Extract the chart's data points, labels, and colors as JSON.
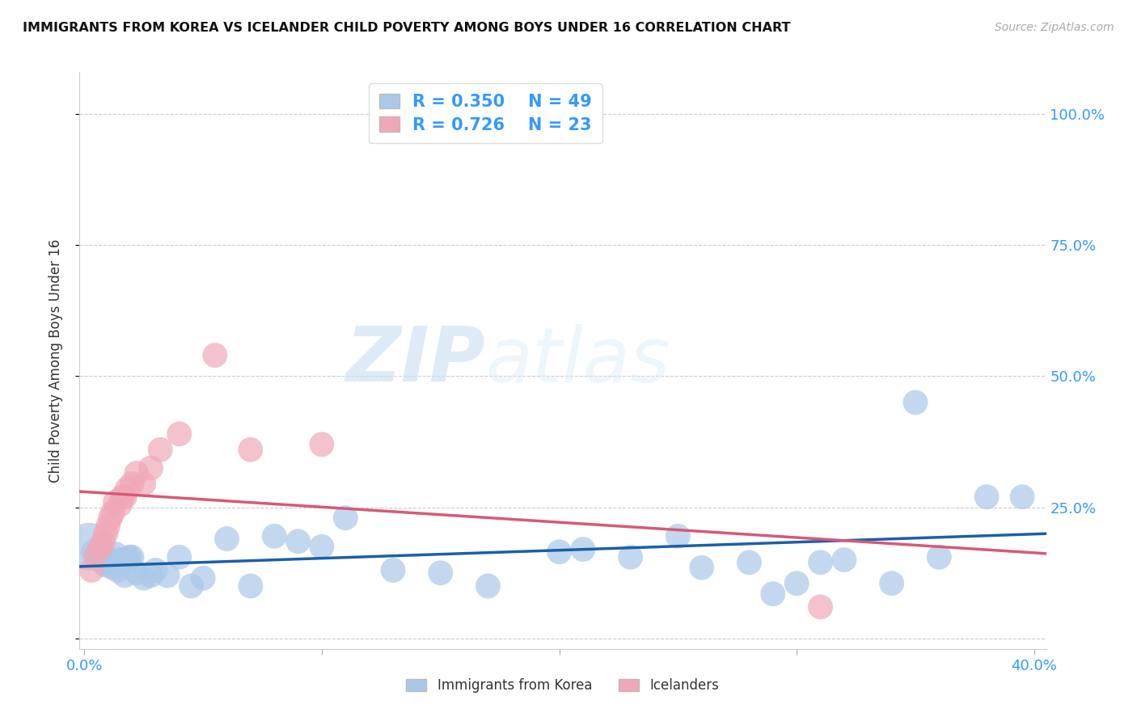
{
  "title": "IMMIGRANTS FROM KOREA VS ICELANDER CHILD POVERTY AMONG BOYS UNDER 16 CORRELATION CHART",
  "source": "Source: ZipAtlas.com",
  "ylabel": "Child Poverty Among Boys Under 16",
  "yticks": [
    0.0,
    0.25,
    0.5,
    0.75,
    1.0
  ],
  "xticks": [
    0.0,
    0.1,
    0.2,
    0.3,
    0.4
  ],
  "xlim": [
    -0.002,
    0.405
  ],
  "ylim": [
    -0.02,
    1.08
  ],
  "watermark_zip": "ZIP",
  "watermark_atlas": "atlas",
  "legend_korea_r": "0.350",
  "legend_korea_n": "49",
  "legend_iceland_r": "0.726",
  "legend_iceland_n": "23",
  "korea_color": "#aac8e8",
  "iceland_color": "#f0a8b8",
  "korea_line_color": "#1a5fa8",
  "iceland_line_color": "#d85878",
  "background_color": "#ffffff",
  "grid_color": "#cccccc",
  "korea_x": [
    0.002,
    0.004,
    0.006,
    0.007,
    0.008,
    0.009,
    0.01,
    0.011,
    0.012,
    0.013,
    0.014,
    0.015,
    0.016,
    0.017,
    0.018,
    0.019,
    0.02,
    0.022,
    0.025,
    0.028,
    0.03,
    0.035,
    0.04,
    0.045,
    0.05,
    0.06,
    0.07,
    0.08,
    0.09,
    0.1,
    0.11,
    0.13,
    0.15,
    0.17,
    0.2,
    0.21,
    0.23,
    0.25,
    0.26,
    0.28,
    0.29,
    0.3,
    0.31,
    0.32,
    0.34,
    0.35,
    0.36,
    0.38,
    0.395
  ],
  "korea_y": [
    0.175,
    0.165,
    0.16,
    0.155,
    0.145,
    0.14,
    0.15,
    0.145,
    0.135,
    0.16,
    0.13,
    0.15,
    0.145,
    0.12,
    0.15,
    0.155,
    0.155,
    0.125,
    0.115,
    0.12,
    0.13,
    0.12,
    0.155,
    0.1,
    0.115,
    0.19,
    0.1,
    0.195,
    0.185,
    0.175,
    0.23,
    0.13,
    0.125,
    0.1,
    0.165,
    0.17,
    0.155,
    0.195,
    0.135,
    0.145,
    0.085,
    0.105,
    0.145,
    0.15,
    0.105,
    0.45,
    0.155,
    0.27,
    0.27
  ],
  "korea_size": [
    200,
    60,
    55,
    55,
    60,
    55,
    60,
    55,
    55,
    60,
    55,
    55,
    55,
    55,
    55,
    55,
    55,
    55,
    55,
    55,
    55,
    55,
    55,
    55,
    55,
    55,
    55,
    55,
    55,
    55,
    55,
    55,
    55,
    55,
    55,
    55,
    55,
    55,
    55,
    55,
    55,
    55,
    55,
    55,
    55,
    55,
    55,
    55,
    55
  ],
  "iceland_x": [
    0.003,
    0.005,
    0.007,
    0.008,
    0.009,
    0.01,
    0.011,
    0.012,
    0.013,
    0.015,
    0.016,
    0.017,
    0.018,
    0.02,
    0.022,
    0.025,
    0.028,
    0.032,
    0.04,
    0.055,
    0.07,
    0.1,
    0.31
  ],
  "iceland_y": [
    0.13,
    0.16,
    0.175,
    0.185,
    0.2,
    0.215,
    0.23,
    0.24,
    0.26,
    0.255,
    0.27,
    0.27,
    0.285,
    0.295,
    0.315,
    0.295,
    0.325,
    0.36,
    0.39,
    0.54,
    0.36,
    0.37,
    0.06
  ],
  "iceland_size": [
    55,
    55,
    55,
    55,
    55,
    55,
    55,
    55,
    55,
    55,
    55,
    55,
    55,
    55,
    55,
    55,
    55,
    55,
    55,
    55,
    55,
    55,
    55
  ]
}
